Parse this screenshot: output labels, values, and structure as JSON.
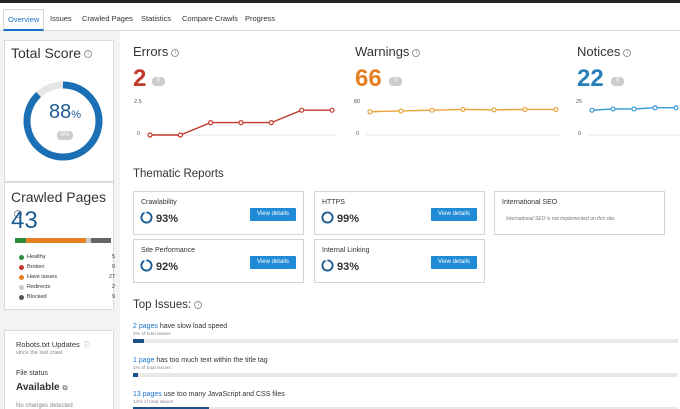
{
  "tabs": [
    {
      "label": "Overview",
      "active": true
    },
    {
      "label": "Issues",
      "active": false
    },
    {
      "label": "Crawled Pages",
      "active": false
    },
    {
      "label": "Statistics",
      "active": false
    },
    {
      "label": "Compare Crawls",
      "active": false
    },
    {
      "label": "Progress",
      "active": false
    }
  ],
  "total_score": {
    "title": "Total Score",
    "value": "88",
    "unit": "%",
    "badge": "0%",
    "percent": 88
  },
  "crawled_pages": {
    "title": "Crawled Pages",
    "value": "43",
    "legend": [
      {
        "label": "Healthy",
        "count": "5",
        "color": "#2e8b3a"
      },
      {
        "label": "Broken",
        "count": "0",
        "color": "#c0392b"
      },
      {
        "label": "Have issues",
        "count": "27",
        "color": "#e67e22"
      },
      {
        "label": "Redirects",
        "count": "2",
        "color": "#c9c9c9"
      },
      {
        "label": "Blocked",
        "count": "9",
        "color": "#555555"
      }
    ],
    "bar_segments": [
      {
        "value": 5,
        "color": "#2e8b3a"
      },
      {
        "value": 27,
        "color": "#e67e22"
      },
      {
        "value": 2,
        "color": "#c9c9c9"
      },
      {
        "value": 9,
        "color": "#666666"
      }
    ]
  },
  "robots": {
    "title": "Robots.txt Updates",
    "subtitle": "since the last crawl",
    "file_status_label": "File status",
    "file_status_value": "Available",
    "footer": "No changes detected"
  },
  "metrics": {
    "errors": {
      "title": "Errors",
      "value": "2",
      "badge": "0",
      "color": "#c0392b"
    },
    "warnings": {
      "title": "Warnings",
      "value": "66",
      "badge": "0",
      "color": "#e67e22"
    },
    "notices": {
      "title": "Notices",
      "value": "22",
      "badge": "0",
      "color": "#2980b9"
    }
  },
  "chart_data": [
    {
      "type": "line",
      "name": "errors",
      "yticks": [
        "2.5",
        "0"
      ],
      "ylim": [
        0,
        2.5
      ],
      "values": [
        0,
        0,
        1,
        1,
        1,
        2,
        2
      ],
      "color": "#c0392b"
    },
    {
      "type": "line",
      "name": "warnings",
      "yticks": [
        "80",
        "0"
      ],
      "ylim": [
        0,
        80
      ],
      "values": [
        60,
        62,
        64,
        66,
        65,
        66,
        66
      ],
      "color": "#e9a23b"
    },
    {
      "type": "line",
      "name": "notices",
      "yticks": [
        "25",
        "0"
      ],
      "ylim": [
        0,
        25
      ],
      "values": [
        20,
        21,
        21,
        22,
        22
      ],
      "color": "#3498db"
    }
  ],
  "thematic": {
    "title": "Thematic Reports",
    "view_label": "View details",
    "cards": [
      {
        "title": "Crawlability",
        "value": "93%",
        "percent": 93
      },
      {
        "title": "HTTPS",
        "value": "99%",
        "percent": 99
      },
      {
        "title": "International SEO",
        "note": "International SEO is not implemented on this site."
      },
      {
        "title": "Site Performance",
        "value": "92%",
        "percent": 92
      },
      {
        "title": "Internal Linking",
        "value": "93%",
        "percent": 93
      }
    ]
  },
  "top_issues": {
    "title": "Top Issues:",
    "items": [
      {
        "link": "2 pages",
        "text": " have slow load speed",
        "sub": "2% of total issues",
        "percent": 2
      },
      {
        "link": "1 page",
        "text": " has too much text within the title tag",
        "sub": "1% of total issues",
        "percent": 1
      },
      {
        "link": "13 pages",
        "text": " use too many JavaScript and CSS files",
        "sub": "14% of total issues",
        "percent": 14
      }
    ]
  }
}
